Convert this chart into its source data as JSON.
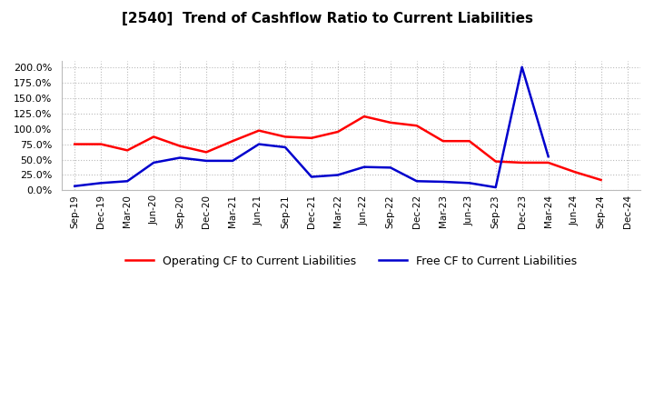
{
  "title": "[2540]  Trend of Cashflow Ratio to Current Liabilities",
  "x_labels": [
    "Sep-19",
    "Dec-19",
    "Mar-20",
    "Jun-20",
    "Sep-20",
    "Dec-20",
    "Mar-21",
    "Jun-21",
    "Sep-21",
    "Dec-21",
    "Mar-22",
    "Jun-22",
    "Sep-22",
    "Dec-22",
    "Mar-23",
    "Jun-23",
    "Sep-23",
    "Dec-23",
    "Mar-24",
    "Jun-24",
    "Sep-24",
    "Dec-24"
  ],
  "operating_cf": [
    75.0,
    75.0,
    65.0,
    87.0,
    72.0,
    62.0,
    80.0,
    97.0,
    87.0,
    85.0,
    95.0,
    120.0,
    110.0,
    105.0,
    80.0,
    80.0,
    47.0,
    45.0,
    45.0,
    30.0,
    17.0,
    null
  ],
  "free_cf": [
    7.0,
    12.0,
    15.0,
    45.0,
    53.0,
    48.0,
    48.0,
    75.0,
    70.0,
    22.0,
    25.0,
    38.0,
    37.0,
    15.0,
    14.0,
    12.0,
    5.0,
    200.0,
    55.0,
    null,
    null,
    null
  ],
  "operating_cf_color": "#ff0000",
  "free_cf_color": "#0000cd",
  "background_color": "#ffffff",
  "plot_bg_color": "#ffffff",
  "ylim": [
    0,
    210
  ],
  "yticks": [
    0.0,
    25.0,
    50.0,
    75.0,
    100.0,
    125.0,
    150.0,
    175.0,
    200.0
  ],
  "legend_labels": [
    "Operating CF to Current Liabilities",
    "Free CF to Current Liabilities"
  ],
  "grid_color": "#bbbbbb",
  "line_width": 1.8
}
